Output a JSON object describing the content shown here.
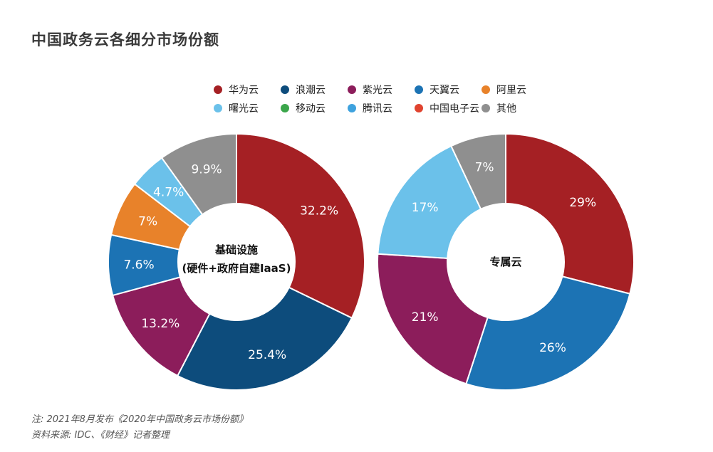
{
  "page_title": "中国政务云各细分市场份额",
  "legend": [
    {
      "label": "华为云",
      "color": "#A52024"
    },
    {
      "label": "浪潮云",
      "color": "#0D4C7C"
    },
    {
      "label": "紫光云",
      "color": "#8C1D5B"
    },
    {
      "label": "天翼云",
      "color": "#1C73B4"
    },
    {
      "label": "阿里云",
      "color": "#E8822A"
    },
    {
      "label": "曙光云",
      "color": "#6BC1EA"
    },
    {
      "label": "移动云",
      "color": "#3BA64B"
    },
    {
      "label": "腾讯云",
      "color": "#3EA2DE"
    },
    {
      "label": "中国电子云",
      "color": "#E0432F"
    },
    {
      "label": "其他",
      "color": "#8F8F8F"
    }
  ],
  "chart_data": [
    {
      "type": "pie",
      "variant": "donut",
      "center_label_line1": "基础设施",
      "center_label_line2": "(硬件+政府自建IaaS)",
      "slices": [
        {
          "label": "华为云",
          "value": 32.2,
          "display": "32.2%",
          "color": "#A52024"
        },
        {
          "label": "浪潮云",
          "value": 25.4,
          "display": "25.4%",
          "color": "#0D4C7C"
        },
        {
          "label": "紫光云",
          "value": 13.2,
          "display": "13.2%",
          "color": "#8C1D5B"
        },
        {
          "label": "天翼云",
          "value": 7.6,
          "display": "7.6%",
          "color": "#1C73B4"
        },
        {
          "label": "阿里云",
          "value": 7,
          "display": "7%",
          "color": "#E8822A"
        },
        {
          "label": "曙光云",
          "value": 4.7,
          "display": "4.7%",
          "color": "#6BC1EA"
        },
        {
          "label": "其他",
          "value": 9.9,
          "display": "9.9%",
          "color": "#8F8F8F"
        }
      ]
    },
    {
      "type": "pie",
      "variant": "donut",
      "center_label_line1": "专属云",
      "center_label_line2": "",
      "slices": [
        {
          "label": "华为云",
          "value": 29,
          "display": "29%",
          "color": "#A52024"
        },
        {
          "label": "天翼云",
          "value": 26,
          "display": "26%",
          "color": "#1C73B4"
        },
        {
          "label": "紫光云",
          "value": 21,
          "display": "21%",
          "color": "#8C1D5B"
        },
        {
          "label": "曙光云",
          "value": 17,
          "display": "17%",
          "color": "#6BC1EA"
        },
        {
          "label": "其他",
          "value": 7,
          "display": "7%",
          "color": "#8F8F8F"
        }
      ]
    }
  ],
  "footnote": {
    "line1": "注: 2021年8月发布《2020年中国政务云市场份额》",
    "line2": "资料来源: IDC、《财经》记者整理"
  }
}
